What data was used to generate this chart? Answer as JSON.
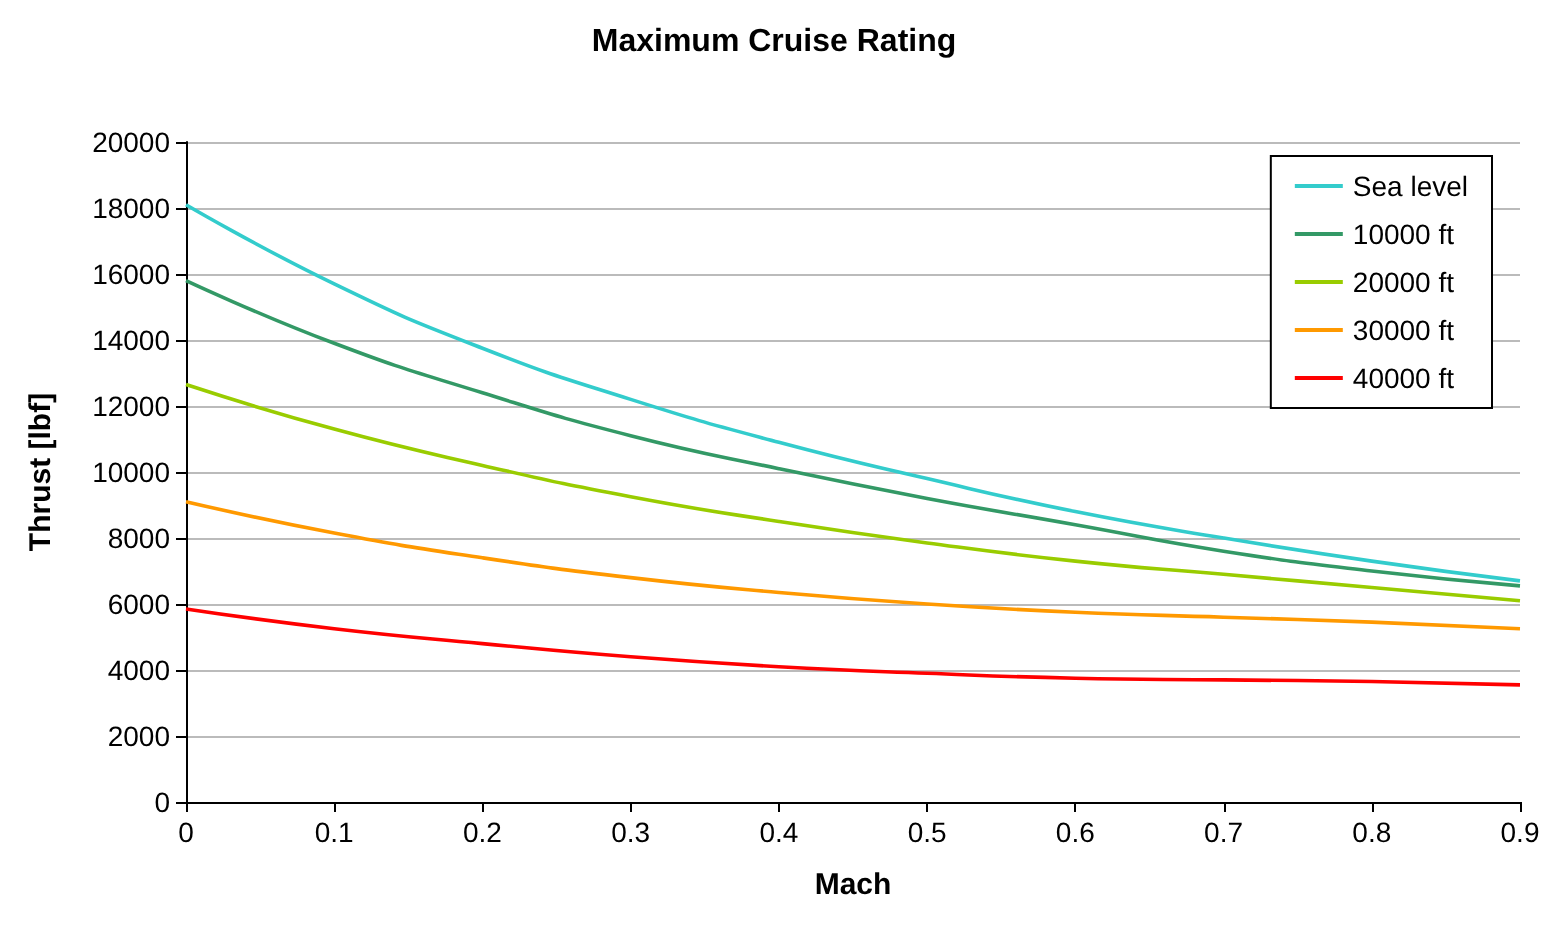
{
  "chart_data": {
    "type": "line",
    "title": "Maximum Cruise Rating",
    "xlabel": "Mach",
    "ylabel": "Thrust [lbf]",
    "x": [
      0,
      0.1,
      0.2,
      0.3,
      0.4,
      0.5,
      0.6,
      0.7,
      0.8,
      0.9
    ],
    "series": [
      {
        "name": "Sea level",
        "color": "#33cccc",
        "values": [
          18100,
          15700,
          13750,
          12200,
          10900,
          9800,
          8800,
          8000,
          7300,
          6700
        ]
      },
      {
        "name": "10000 ft",
        "color": "#339966",
        "values": [
          15800,
          13900,
          12400,
          11100,
          10100,
          9200,
          8400,
          7600,
          7000,
          6550
        ]
      },
      {
        "name": "20000 ft",
        "color": "#99cc00",
        "values": [
          12650,
          11300,
          10200,
          9250,
          8500,
          7850,
          7300,
          6900,
          6500,
          6100
        ]
      },
      {
        "name": "30000 ft",
        "color": "#ff9900",
        "values": [
          9100,
          8150,
          7400,
          6800,
          6350,
          6000,
          5750,
          5600,
          5450,
          5250
        ]
      },
      {
        "name": "40000 ft",
        "color": "#ff0000",
        "values": [
          5850,
          5250,
          4800,
          4400,
          4100,
          3900,
          3750,
          3700,
          3650,
          3550
        ]
      }
    ],
    "xlim": [
      0,
      0.9
    ],
    "xticks": [
      0,
      0.1,
      0.2,
      0.3,
      0.4,
      0.5,
      0.6,
      0.7,
      0.8,
      0.9
    ],
    "ylim": [
      0,
      20000
    ],
    "yticks": [
      0,
      2000,
      4000,
      6000,
      8000,
      10000,
      12000,
      14000,
      16000,
      18000,
      20000
    ],
    "grid": "y",
    "legend": "top right",
    "marker": "none",
    "line_style": "solid"
  }
}
